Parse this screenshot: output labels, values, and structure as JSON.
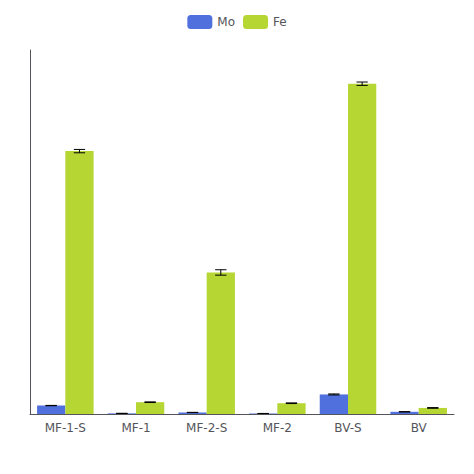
{
  "chart_data": {
    "type": "bar",
    "categories": [
      "MF-1-S",
      "MF-1",
      "MF-2-S",
      "MF-2",
      "BV-S",
      "BV"
    ],
    "series": [
      {
        "name": "Mo",
        "values": [
          2.5,
          0.18,
          0.45,
          0.15,
          5.8,
          0.65
        ],
        "errors": [
          0.05,
          0.02,
          0.04,
          0.02,
          0.15,
          0.05
        ]
      },
      {
        "name": "Fe",
        "values": [
          78,
          3.5,
          42,
          3.2,
          98,
          1.8
        ],
        "errors": [
          0.5,
          0.1,
          0.8,
          0.1,
          0.5,
          0.1
        ]
      }
    ],
    "ylim": [
      0,
      108
    ],
    "yticks": [],
    "grid": false,
    "legend": "top",
    "tick_labels": "x"
  }
}
